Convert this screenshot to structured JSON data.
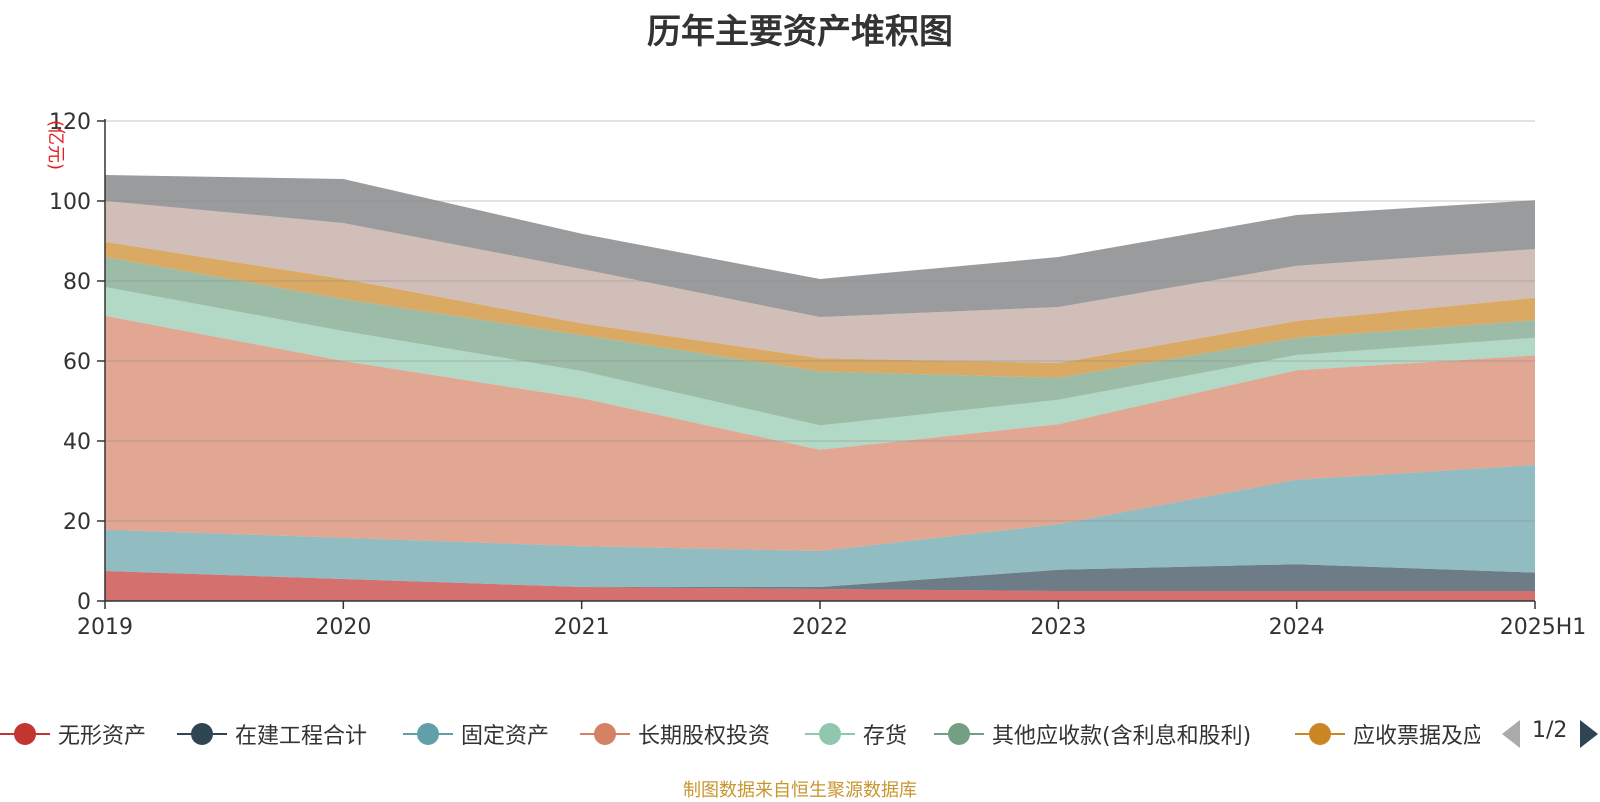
{
  "chart_data": {
    "type": "area",
    "stacked": true,
    "title": "历年主要资产堆积图",
    "unit_label": "(亿元)",
    "x": [
      "2019",
      "2020",
      "2021",
      "2022",
      "2023",
      "2024",
      "2025H1"
    ],
    "ylim": [
      0,
      120
    ],
    "yticks": [
      0,
      20,
      40,
      60,
      80,
      100,
      120
    ],
    "grid": true,
    "legend_position": "bottom",
    "series": [
      {
        "name": "无形资产",
        "color": "#c23531",
        "values": [
          7.5,
          5.5,
          3.5,
          3.0,
          2.5,
          2.5,
          2.5
        ]
      },
      {
        "name": "在建工程合计",
        "color": "#2f4554",
        "values": [
          0.0,
          0.0,
          0.0,
          0.5,
          5.3,
          6.7,
          4.6
        ]
      },
      {
        "name": "固定资产",
        "color": "#61a0a8",
        "values": [
          10.3,
          10.3,
          10.2,
          9.0,
          11.4,
          21.1,
          26.9
        ]
      },
      {
        "name": "长期股权投资",
        "color": "#d48265",
        "values": [
          53.5,
          44.2,
          37.0,
          25.3,
          25.0,
          27.4,
          27.4
        ]
      },
      {
        "name": "存货",
        "color": "#91c7ae",
        "values": [
          7.2,
          7.5,
          6.8,
          6.1,
          6.1,
          3.8,
          4.4
        ]
      },
      {
        "name": "其他应收款(含利息和股利)",
        "color": "#749f83",
        "values": [
          7.5,
          8.0,
          9.0,
          13.5,
          5.5,
          4.3,
          4.4
        ]
      },
      {
        "name": "应收票据及应收账款",
        "color": "#ca8622",
        "values": [
          3.8,
          5.0,
          2.9,
          3.3,
          3.7,
          4.2,
          5.6
        ]
      },
      {
        "name": "",
        "color": "#bda29a",
        "values": [
          10.2,
          14.0,
          13.6,
          10.3,
          14.0,
          13.8,
          12.2
        ]
      },
      {
        "name": "",
        "color": "#6e7074",
        "values": [
          6.5,
          11.0,
          8.8,
          9.5,
          12.5,
          12.7,
          12.2
        ]
      }
    ]
  },
  "legend": {
    "items": [
      "无形资产",
      "在建工程合计",
      "固定资产",
      "长期股权投资",
      "存货",
      "其他应收款(含利息和股利)",
      "应收票据及应收账款"
    ],
    "page_text": "1/2"
  },
  "footer": {
    "source": "制图数据来自恒生聚源数据库"
  }
}
